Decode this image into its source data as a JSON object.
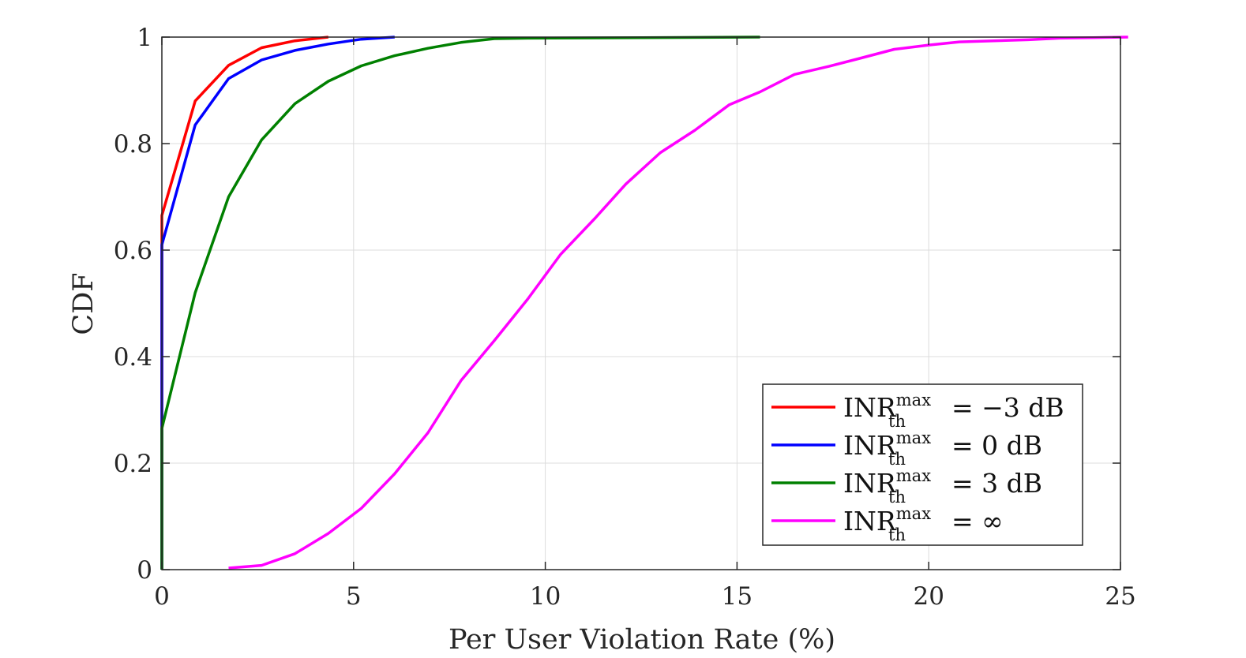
{
  "chart_data": {
    "type": "line",
    "xlabel": "Per User Violation Rate (%)",
    "ylabel": "CDF",
    "xlim": [
      0,
      25
    ],
    "ylim": [
      0,
      1
    ],
    "xticks": [
      "0",
      "5",
      "10",
      "15",
      "20",
      "25"
    ],
    "yticks": [
      "0",
      "0.2",
      "0.4",
      "0.6",
      "0.8",
      "1"
    ],
    "grid": true,
    "legend_position": "bottom-right",
    "series": [
      {
        "name": {
          "base": "INR",
          "sup": "max",
          "sub": "th",
          "rest": "= −3 dB"
        },
        "color": "#ff0000",
        "points": [
          [
            0,
            0
          ],
          [
            0,
            0.665
          ],
          [
            0.87,
            0.88
          ],
          [
            1.74,
            0.947
          ],
          [
            2.6,
            0.98
          ],
          [
            3.47,
            0.993
          ],
          [
            4.34,
            1.0
          ]
        ]
      },
      {
        "name": {
          "base": "INR",
          "sup": "max",
          "sub": "th",
          "rest": "= 0 dB"
        },
        "color": "#0000ff",
        "points": [
          [
            0,
            0
          ],
          [
            0,
            0.61
          ],
          [
            0.87,
            0.835
          ],
          [
            1.74,
            0.922
          ],
          [
            2.6,
            0.957
          ],
          [
            3.47,
            0.975
          ],
          [
            4.34,
            0.987
          ],
          [
            5.2,
            0.996
          ],
          [
            6.07,
            1.0
          ]
        ]
      },
      {
        "name": {
          "base": "INR",
          "sup": "max",
          "sub": "th",
          "rest": "= 3 dB"
        },
        "color": "#008000",
        "points": [
          [
            0,
            0
          ],
          [
            0,
            0.265
          ],
          [
            0.87,
            0.52
          ],
          [
            1.74,
            0.7
          ],
          [
            2.6,
            0.807
          ],
          [
            3.47,
            0.875
          ],
          [
            4.34,
            0.917
          ],
          [
            5.2,
            0.946
          ],
          [
            6.07,
            0.965
          ],
          [
            6.94,
            0.979
          ],
          [
            7.8,
            0.99
          ],
          [
            8.67,
            0.997
          ],
          [
            9.54,
            0.998
          ],
          [
            15.6,
            1.0
          ]
        ]
      },
      {
        "name": {
          "base": "INR",
          "sup": "max",
          "sub": "th",
          "rest": "= ∞"
        },
        "color": "#ff00ff",
        "points": [
          [
            1.74,
            0.003
          ],
          [
            2.6,
            0.008
          ],
          [
            3.47,
            0.03
          ],
          [
            4.34,
            0.068
          ],
          [
            5.2,
            0.115
          ],
          [
            6.07,
            0.18
          ],
          [
            6.94,
            0.257
          ],
          [
            7.8,
            0.355
          ],
          [
            8.67,
            0.43
          ],
          [
            9.54,
            0.508
          ],
          [
            10.4,
            0.592
          ],
          [
            11.3,
            0.66
          ],
          [
            12.1,
            0.724
          ],
          [
            13.0,
            0.783
          ],
          [
            13.9,
            0.825
          ],
          [
            14.8,
            0.873
          ],
          [
            15.6,
            0.897
          ],
          [
            16.5,
            0.93
          ],
          [
            17.4,
            0.945
          ],
          [
            18.2,
            0.96
          ],
          [
            19.1,
            0.977
          ],
          [
            20.0,
            0.985
          ],
          [
            20.8,
            0.991
          ],
          [
            21.7,
            0.993
          ],
          [
            22.6,
            0.995
          ],
          [
            23.4,
            0.998
          ],
          [
            24.3,
            0.999
          ],
          [
            25.2,
            1.0
          ]
        ]
      }
    ]
  }
}
